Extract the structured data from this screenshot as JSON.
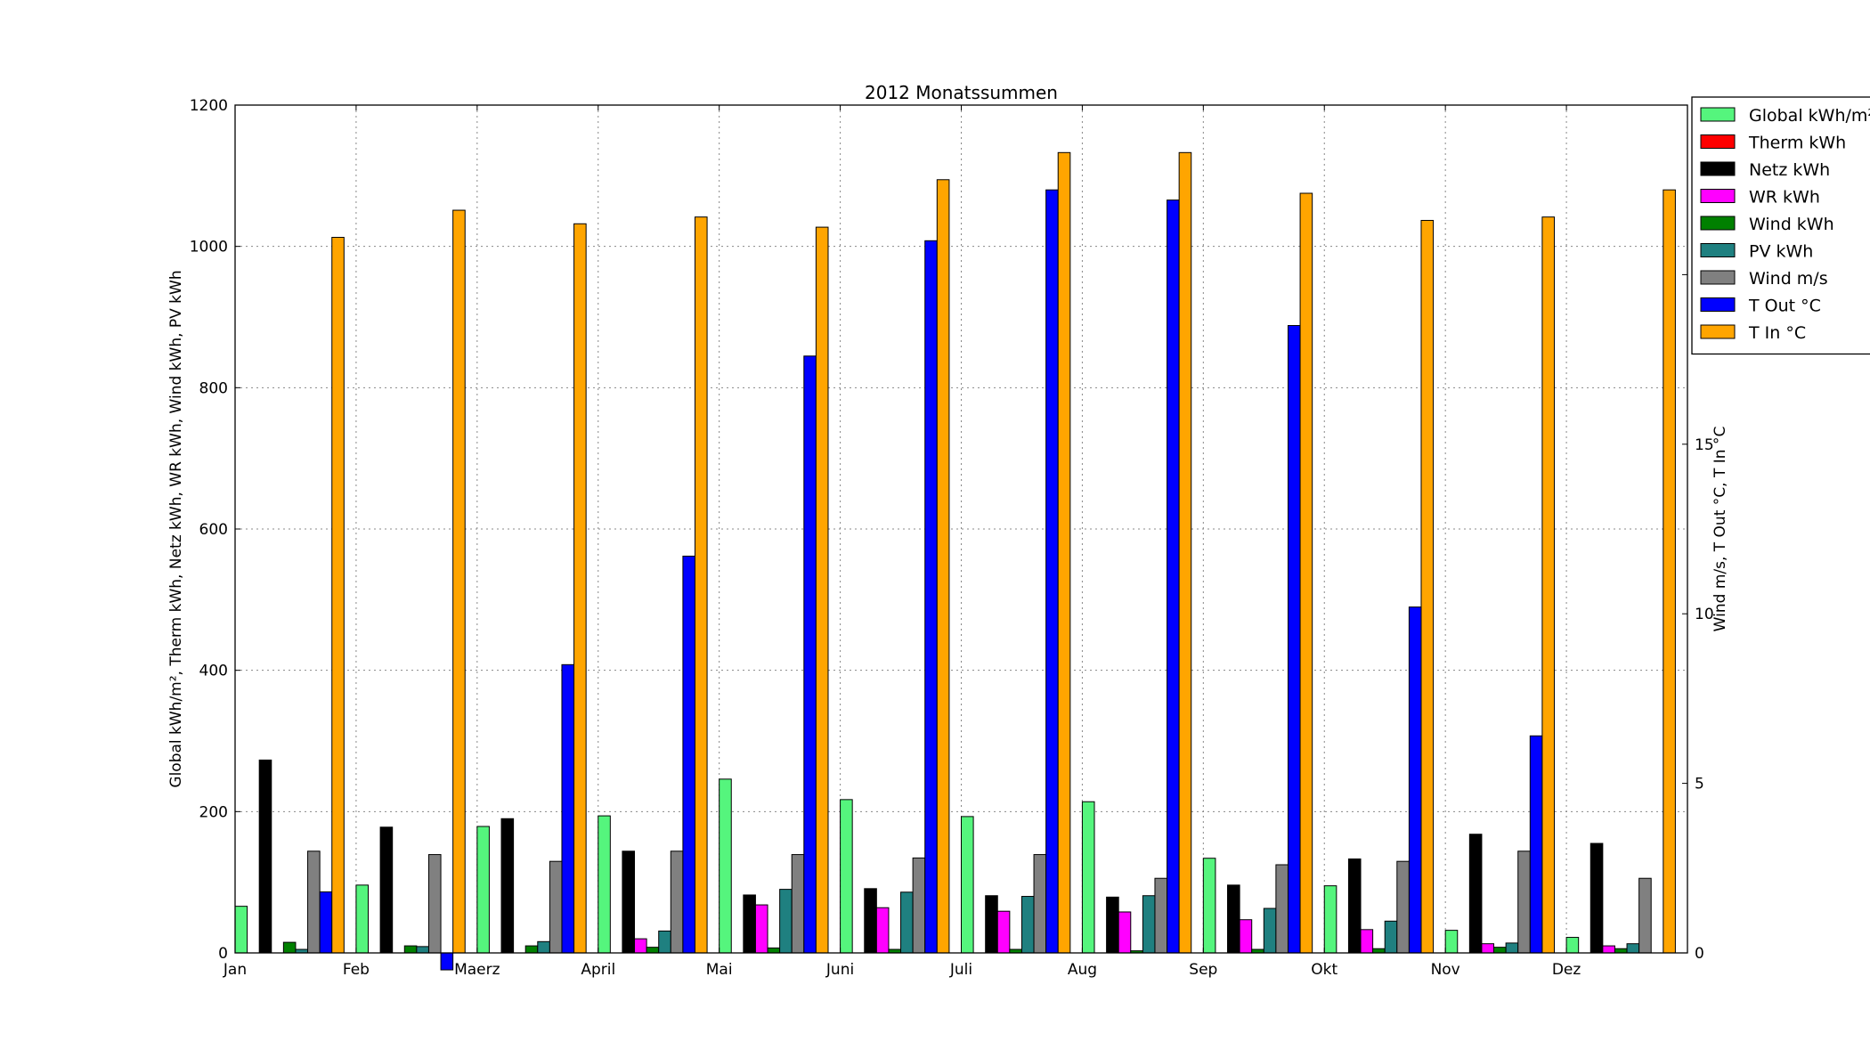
{
  "chart_data": {
    "type": "bar",
    "title": "2012 Monatssummen",
    "ylabel_left": "Global kWh/m², Therm kWh, Netz kWh, WR kWh, Wind kWh, PV kWh",
    "ylabel_right": "Wind m/s, T Out °C, T In °C",
    "ylim_left": [
      0,
      1200
    ],
    "ylim_right": [
      0,
      25
    ],
    "yticks_left": [
      "0",
      "200",
      "400",
      "600",
      "800",
      "1000",
      "1200"
    ],
    "yticks_right": [
      "0",
      "5",
      "10",
      "15",
      "20",
      "25"
    ],
    "categories": [
      "Jan",
      "Feb",
      "Maerz",
      "April",
      "Mai",
      "Juni",
      "Juli",
      "Aug",
      "Sep",
      "Okt",
      "Nov",
      "Dez"
    ],
    "grid": true,
    "legend_position": "top-right",
    "series": [
      {
        "name": "Global kWh/m²",
        "axis": "left",
        "color": "#55f57d",
        "values": [
          66,
          96,
          179,
          194,
          246,
          217,
          193,
          214,
          134,
          95,
          32,
          22
        ]
      },
      {
        "name": "Therm kWh",
        "axis": "left",
        "color": "#ff0000",
        "values": [
          0,
          0,
          0,
          0,
          0,
          0,
          0,
          0,
          0,
          0,
          0,
          0
        ]
      },
      {
        "name": "Netz kWh",
        "axis": "left",
        "color": "#000000",
        "values": [
          273,
          178,
          190,
          144,
          82,
          91,
          81,
          79,
          96,
          133,
          168,
          155
        ]
      },
      {
        "name": "WR kWh",
        "axis": "left",
        "color": "#ff00ff",
        "values": [
          0,
          0,
          0,
          20,
          68,
          64,
          59,
          58,
          47,
          33,
          13,
          10
        ]
      },
      {
        "name": "Wind kWh",
        "axis": "left",
        "color": "#008000",
        "values": [
          15,
          10,
          10,
          8,
          7,
          5,
          5,
          3,
          5,
          6,
          8,
          6
        ]
      },
      {
        "name": "PV kWh",
        "axis": "left",
        "color": "#1f8080",
        "values": [
          5,
          9,
          16,
          31,
          90,
          86,
          80,
          81,
          63,
          45,
          14,
          13
        ]
      },
      {
        "name": "Wind m/s",
        "axis": "right",
        "color": "#808080",
        "values": [
          3.0,
          2.9,
          2.7,
          3.0,
          2.9,
          2.8,
          2.9,
          2.2,
          2.6,
          2.7,
          3.0,
          2.2
        ]
      },
      {
        "name": "T Out °C",
        "axis": "right",
        "color": "#0000ff",
        "values": [
          1.8,
          -0.5,
          8.5,
          11.7,
          17.6,
          21.0,
          22.5,
          22.2,
          18.5,
          10.2,
          6.4,
          0
        ]
      },
      {
        "name": "T In °C",
        "axis": "right",
        "color": "#ffa500",
        "values": [
          21.1,
          21.9,
          21.5,
          21.7,
          21.4,
          22.8,
          23.6,
          23.6,
          22.4,
          21.6,
          21.7,
          22.5
        ]
      }
    ]
  }
}
